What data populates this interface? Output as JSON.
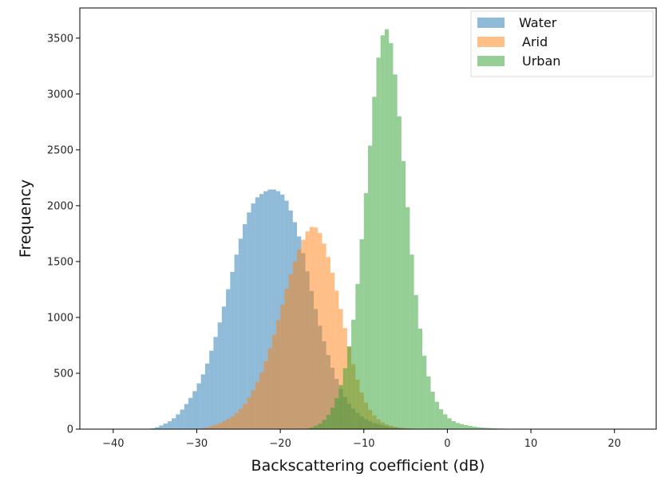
{
  "chart_data": {
    "type": "histogram",
    "xlabel": "Backscattering coefficient (dB)",
    "ylabel": "Frequency",
    "xlim": [
      -44,
      25
    ],
    "ylim": [
      0,
      3770
    ],
    "x_ticks": [
      -40,
      -30,
      -20,
      -10,
      0,
      10,
      20
    ],
    "y_ticks": [
      0,
      500,
      1000,
      1500,
      2000,
      2500,
      3000,
      3500
    ],
    "grid": false,
    "legend_position": "top-right",
    "overlap": "semi-transparent bars (alpha 0.5)",
    "bin_width_db": 0.5,
    "series": [
      {
        "name": "Water",
        "color": "#1f77b4",
        "x": [
          -36,
          -35,
          -34,
          -33,
          -32,
          -31,
          -30,
          -29,
          -28,
          -27,
          -26,
          -25,
          -24,
          -23,
          -22,
          -21.5,
          -21,
          -20.5,
          -20,
          -19.5,
          -19,
          -18,
          -17,
          -16,
          -15,
          -14,
          -13,
          -12,
          -11,
          -10,
          -9,
          -8,
          -7,
          -6,
          -5,
          -4,
          -3,
          -2
        ],
        "y": [
          0,
          10,
          40,
          80,
          150,
          250,
          370,
          530,
          760,
          1020,
          1330,
          1640,
          1900,
          2060,
          2120,
          2140,
          2150,
          2140,
          2120,
          2080,
          2010,
          1800,
          1500,
          1150,
          850,
          600,
          400,
          250,
          160,
          100,
          60,
          40,
          20,
          12,
          6,
          3,
          1,
          0
        ]
      },
      {
        "name": "Arid",
        "color": "#ff7f0e",
        "x": [
          -30,
          -29,
          -28,
          -27,
          -26,
          -25,
          -24,
          -23,
          -22,
          -21,
          -20,
          -19,
          -18,
          -17,
          -16.5,
          -16,
          -15.5,
          -15,
          -14,
          -13,
          -12,
          -11,
          -10,
          -9,
          -8,
          -7,
          -6,
          -5,
          -4,
          -3
        ],
        "y": [
          0,
          10,
          30,
          60,
          100,
          160,
          250,
          380,
          550,
          780,
          1040,
          1330,
          1560,
          1740,
          1800,
          1820,
          1790,
          1720,
          1480,
          1160,
          820,
          500,
          270,
          140,
          70,
          35,
          15,
          8,
          3,
          0
        ]
      },
      {
        "name": "Urban",
        "color": "#2ca02c",
        "x": [
          -17,
          -16,
          -15,
          -14,
          -13,
          -12,
          -11,
          -10,
          -9,
          -8.5,
          -8,
          -7.5,
          -7,
          -6.5,
          -6,
          -5,
          -4,
          -3,
          -2,
          -1,
          0,
          1,
          2,
          3,
          4,
          5,
          6,
          7,
          8,
          9,
          10
        ],
        "y": [
          0,
          20,
          60,
          150,
          320,
          620,
          1100,
          1900,
          2750,
          3200,
          3450,
          3600,
          3560,
          3350,
          3000,
          2200,
          1350,
          750,
          380,
          200,
          110,
          60,
          40,
          25,
          15,
          10,
          6,
          4,
          2,
          1,
          0
        ]
      }
    ]
  }
}
